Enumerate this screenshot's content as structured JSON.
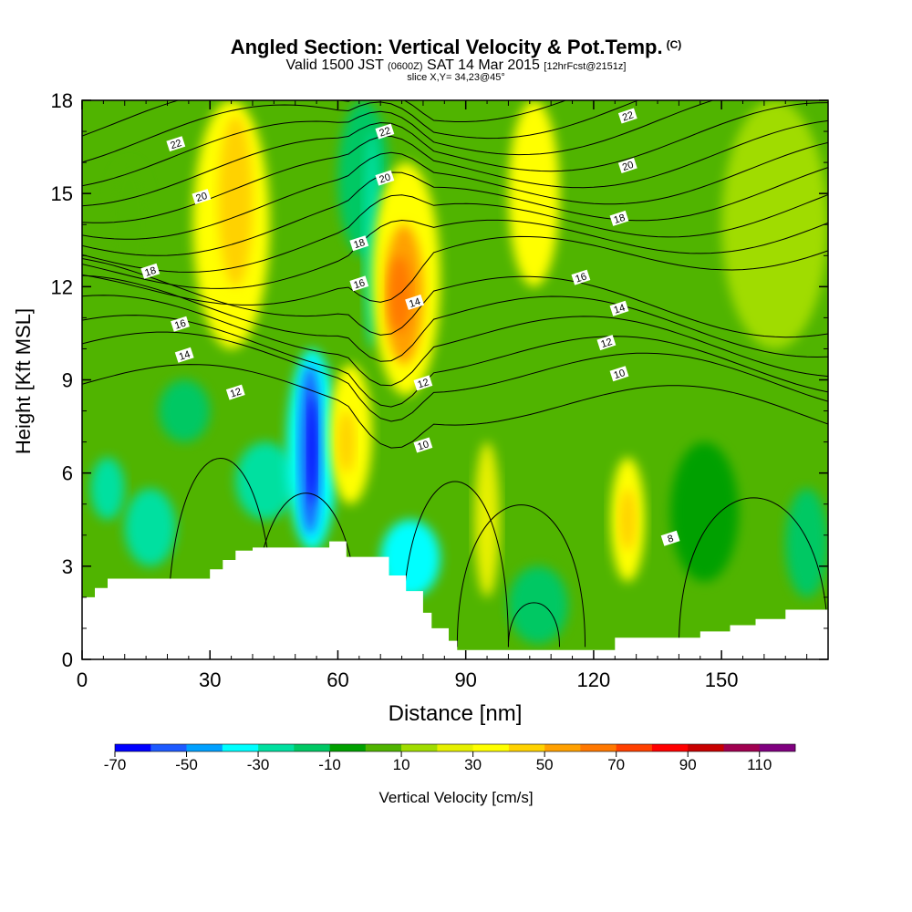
{
  "title": {
    "main": "Angled Section: Vertical Velocity & Pot.Temp.",
    "units_tag": "(C)",
    "valid_a": "Valid 1500 JST",
    "valid_small": "(0600Z)",
    "valid_b": "SAT 14 Mar 2015",
    "fcst": "[12hrFcst@2151z]",
    "slice": "slice X,Y= 34,23@45°"
  },
  "chart_data": {
    "type": "heatmap",
    "xlabel": "Distance [nm]",
    "ylabel": "Height [Kft MSL]",
    "xlim": [
      0,
      175
    ],
    "ylim": [
      0,
      18
    ],
    "x_ticks": [
      0,
      30,
      60,
      90,
      120,
      150
    ],
    "y_ticks": [
      0,
      3,
      6,
      9,
      12,
      15,
      18
    ],
    "grid": false,
    "colorbar": {
      "label": "Vertical Velocity [cm/s]",
      "tick_labels": [
        "-70",
        "-50",
        "-30",
        "-10",
        "10",
        "30",
        "50",
        "70",
        "90",
        "110"
      ],
      "levels": [
        -70,
        -60,
        -50,
        -40,
        -30,
        -20,
        -10,
        0,
        10,
        20,
        30,
        40,
        50,
        60,
        70,
        80,
        90,
        100,
        110,
        120
      ],
      "colors": [
        "#0000ff",
        "#1e5aff",
        "#00a0ff",
        "#00ffff",
        "#00e0a0",
        "#00c864",
        "#00a000",
        "#50b400",
        "#a0dc00",
        "#e6f000",
        "#ffff00",
        "#ffd200",
        "#ffa000",
        "#ff7800",
        "#ff4000",
        "#ff0000",
        "#c80000",
        "#a00050",
        "#800080"
      ]
    },
    "vertical_velocity_cells": [
      {
        "x": [
          2,
          10
        ],
        "y": [
          4.5,
          6.5
        ],
        "v": -25
      },
      {
        "x": [
          10,
          22
        ],
        "y": [
          3,
          5.5
        ],
        "v": -25
      },
      {
        "x": [
          6,
          16
        ],
        "y": [
          12,
          16
        ],
        "v": 5
      },
      {
        "x": [
          18,
          30
        ],
        "y": [
          7,
          9
        ],
        "v": -15
      },
      {
        "x": [
          26,
          44
        ],
        "y": [
          10,
          18
        ],
        "v": 30
      },
      {
        "x": [
          32,
          40
        ],
        "y": [
          12,
          17.5
        ],
        "v": 40
      },
      {
        "x": [
          36,
          50
        ],
        "y": [
          4.5,
          7
        ],
        "v": -25
      },
      {
        "x": [
          48,
          60
        ],
        "y": [
          3.5,
          10
        ],
        "v": -35
      },
      {
        "x": [
          51,
          56
        ],
        "y": [
          4,
          9.5
        ],
        "v": -55
      },
      {
        "x": [
          53,
          55
        ],
        "y": [
          5,
          8.5
        ],
        "v": -70
      },
      {
        "x": [
          58,
          68
        ],
        "y": [
          5,
          9.5
        ],
        "v": 30
      },
      {
        "x": [
          60,
          64
        ],
        "y": [
          6,
          8
        ],
        "v": 45
      },
      {
        "x": [
          60,
          72
        ],
        "y": [
          13,
          18
        ],
        "v": -15
      },
      {
        "x": [
          66,
          70
        ],
        "y": [
          10,
          17
        ],
        "v": -30
      },
      {
        "x": [
          68,
          84
        ],
        "y": [
          8.5,
          16
        ],
        "v": 30
      },
      {
        "x": [
          71,
          80
        ],
        "y": [
          9.5,
          14
        ],
        "v": 50
      },
      {
        "x": [
          72,
          77
        ],
        "y": [
          10.5,
          13
        ],
        "v": 65
      },
      {
        "x": [
          70,
          84
        ],
        "y": [
          2,
          4.5
        ],
        "v": -35
      },
      {
        "x": [
          92,
          98
        ],
        "y": [
          2,
          7
        ],
        "v": 20
      },
      {
        "x": [
          100,
          112
        ],
        "y": [
          12,
          18
        ],
        "v": 30
      },
      {
        "x": [
          100,
          114
        ],
        "y": [
          0.5,
          3
        ],
        "v": -15
      },
      {
        "x": [
          124,
          132
        ],
        "y": [
          2.5,
          6.5
        ],
        "v": 30
      },
      {
        "x": [
          126,
          130
        ],
        "y": [
          3.5,
          5.5
        ],
        "v": 45
      },
      {
        "x": [
          138,
          154
        ],
        "y": [
          2.5,
          7
        ],
        "v": -10
      },
      {
        "x": [
          165,
          175
        ],
        "y": [
          2,
          5.5
        ],
        "v": -15
      },
      {
        "x": [
          150,
          175
        ],
        "y": [
          10,
          18
        ],
        "v": 10
      }
    ],
    "potential_temperature_contours": [
      {
        "level": "8",
        "label_at": [
          138,
          3.9
        ]
      },
      {
        "level": "10",
        "label_at": [
          80,
          6.9
        ]
      },
      {
        "level": "10",
        "label_at": [
          126,
          9.2
        ]
      },
      {
        "level": "12",
        "label_at": [
          36,
          8.6
        ]
      },
      {
        "level": "12",
        "label_at": [
          80,
          8.9
        ]
      },
      {
        "level": "12",
        "label_at": [
          123,
          10.2
        ]
      },
      {
        "level": "14",
        "label_at": [
          24,
          9.8
        ]
      },
      {
        "level": "14",
        "label_at": [
          78,
          11.5
        ]
      },
      {
        "level": "14",
        "label_at": [
          126,
          11.3
        ]
      },
      {
        "level": "16",
        "label_at": [
          23,
          10.8
        ]
      },
      {
        "level": "16",
        "label_at": [
          65,
          12.1
        ]
      },
      {
        "level": "16",
        "label_at": [
          117,
          12.3
        ]
      },
      {
        "level": "18",
        "label_at": [
          16,
          12.5
        ]
      },
      {
        "level": "18",
        "label_at": [
          65,
          13.4
        ]
      },
      {
        "level": "18",
        "label_at": [
          126,
          14.2
        ]
      },
      {
        "level": "20",
        "label_at": [
          28,
          14.9
        ]
      },
      {
        "level": "20",
        "label_at": [
          71,
          15.5
        ]
      },
      {
        "level": "20",
        "label_at": [
          128,
          15.9
        ]
      },
      {
        "level": "22",
        "label_at": [
          22,
          16.6
        ]
      },
      {
        "level": "22",
        "label_at": [
          71,
          17.0
        ]
      },
      {
        "level": "22",
        "label_at": [
          128,
          17.5
        ]
      }
    ],
    "terrain": {
      "x": [
        0,
        3,
        6,
        10,
        30,
        33,
        36,
        40,
        52,
        58,
        62,
        66,
        72,
        76,
        80,
        82,
        86,
        88,
        92,
        125,
        145,
        152,
        158,
        165,
        175
      ],
      "height": [
        2,
        2.3,
        2.6,
        2.6,
        2.9,
        3.2,
        3.5,
        3.6,
        3.6,
        3.8,
        3.3,
        3.3,
        2.7,
        2.2,
        1.5,
        1.0,
        0.6,
        0.3,
        0.3,
        0.7,
        0.9,
        1.1,
        1.3,
        1.6,
        1.6
      ]
    }
  }
}
